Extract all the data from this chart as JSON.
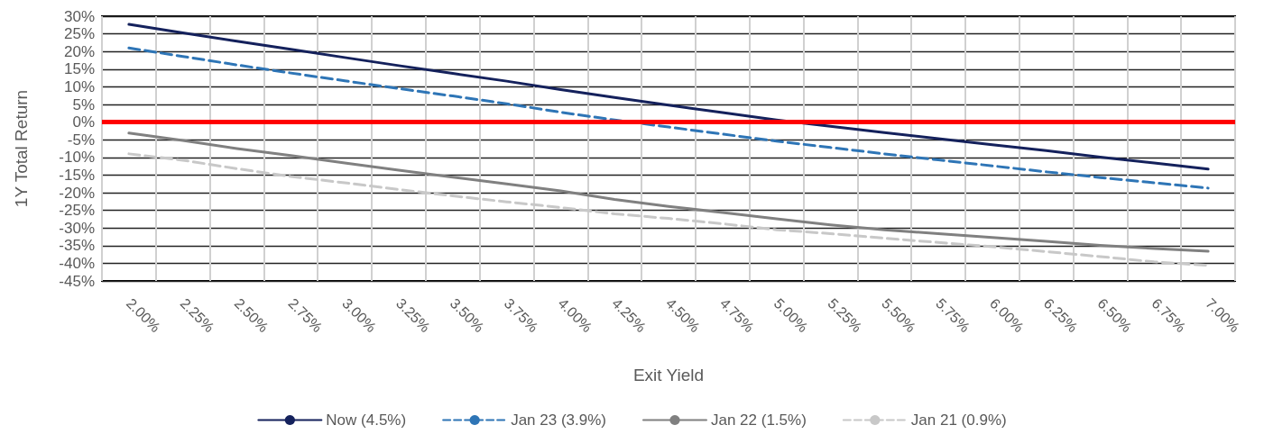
{
  "chart_data": {
    "type": "line",
    "xlabel": "Exit Yield",
    "ylabel": "1Y Total Return",
    "categories": [
      "2.00%",
      "2.25%",
      "2.50%",
      "2.75%",
      "3.00%",
      "3.25%",
      "3.50%",
      "3.75%",
      "4.00%",
      "4.25%",
      "4.50%",
      "4.75%",
      "5.00%",
      "5.25%",
      "5.50%",
      "5.75%",
      "6.00%",
      "6.25%",
      "6.50%",
      "6.75%",
      "7.00%"
    ],
    "series": [
      {
        "name": "Now (4.5%)",
        "color": "#14215c",
        "line_style": "solid",
        "values": [
          27.7,
          25.3,
          22.9,
          20.6,
          18.3,
          16.0,
          13.8,
          11.6,
          9.2,
          7.0,
          4.8,
          2.7,
          0.6,
          -1.2,
          -3.0,
          -4.7,
          -6.4,
          -8.1,
          -9.9,
          -11.6,
          -13.3
        ]
      },
      {
        "name": "Jan 23 (3.9%)",
        "color": "#2e75b6",
        "line_style": "dashed",
        "values": [
          21.0,
          18.6,
          16.2,
          13.9,
          11.7,
          9.5,
          7.4,
          5.2,
          2.8,
          0.6,
          -1.4,
          -3.4,
          -5.4,
          -7.2,
          -9.0,
          -10.7,
          -12.4,
          -14.1,
          -15.7,
          -17.2,
          -18.7
        ]
      },
      {
        "name": "Jan 22 (1.5%)",
        "color": "#808080",
        "line_style": "solid",
        "values": [
          -3.1,
          -5.2,
          -7.5,
          -9.5,
          -11.6,
          -13.6,
          -15.6,
          -17.5,
          -19.5,
          -21.9,
          -23.9,
          -25.6,
          -27.4,
          -29.1,
          -30.5,
          -31.6,
          -32.7,
          -33.8,
          -34.9,
          -35.8,
          -36.6
        ]
      },
      {
        "name": "Jan 21 (0.9%)",
        "color": "#c8c8c8",
        "line_style": "dashed",
        "values": [
          -9.0,
          -10.8,
          -13.2,
          -15.4,
          -17.2,
          -19.1,
          -20.9,
          -22.6,
          -24.2,
          -26.0,
          -27.3,
          -28.8,
          -30.5,
          -31.6,
          -32.9,
          -34.1,
          -35.3,
          -36.7,
          -38.1,
          -39.6,
          -40.6
        ]
      }
    ],
    "ylim": [
      -45,
      30
    ],
    "yticks": [
      {
        "value": 30,
        "label": "30%"
      },
      {
        "value": 25,
        "label": "25%"
      },
      {
        "value": 20,
        "label": "20%"
      },
      {
        "value": 15,
        "label": "15%"
      },
      {
        "value": 10,
        "label": "10%"
      },
      {
        "value": 5,
        "label": "5%"
      },
      {
        "value": 0,
        "label": "0%"
      },
      {
        "value": -5,
        "label": "-5%"
      },
      {
        "value": -10,
        "label": "-10%"
      },
      {
        "value": -15,
        "label": "-15%"
      },
      {
        "value": -20,
        "label": "-20%"
      },
      {
        "value": -25,
        "label": "-25%"
      },
      {
        "value": -30,
        "label": "-30%"
      },
      {
        "value": -35,
        "label": "-35%"
      },
      {
        "value": -40,
        "label": "-40%"
      },
      {
        "value": -45,
        "label": "-45%"
      }
    ],
    "ref_lines": [
      {
        "axis": "y",
        "value": 0,
        "color": "#ff0000"
      }
    ],
    "grid": true,
    "legend": "bottom",
    "marker": "none"
  }
}
